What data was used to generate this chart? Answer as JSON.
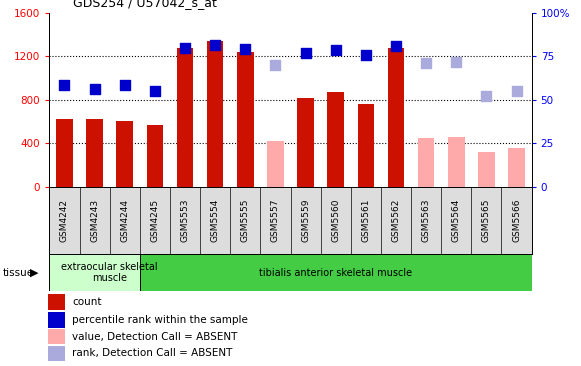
{
  "title": "GDS254 / U57042_s_at",
  "categories": [
    "GSM4242",
    "GSM4243",
    "GSM4244",
    "GSM4245",
    "GSM5553",
    "GSM5554",
    "GSM5555",
    "GSM5557",
    "GSM5559",
    "GSM5560",
    "GSM5561",
    "GSM5562",
    "GSM5563",
    "GSM5564",
    "GSM5565",
    "GSM5566"
  ],
  "count_values": [
    620,
    620,
    600,
    570,
    1280,
    1340,
    1240,
    null,
    820,
    870,
    760,
    1280,
    null,
    null,
    null,
    null
  ],
  "count_absent_values": [
    null,
    null,
    null,
    null,
    null,
    null,
    null,
    420,
    null,
    null,
    null,
    null,
    450,
    460,
    320,
    360
  ],
  "rank_values": [
    940,
    900,
    940,
    880,
    1280,
    1300,
    1270,
    null,
    1230,
    1255,
    1210,
    1290,
    null,
    null,
    null,
    null
  ],
  "rank_absent_values": [
    null,
    null,
    null,
    null,
    null,
    null,
    null,
    1120,
    null,
    null,
    null,
    null,
    1135,
    1145,
    830,
    880
  ],
  "ylim_left": [
    0,
    1600
  ],
  "ylim_right": [
    0,
    100
  ],
  "yticks_left": [
    0,
    400,
    800,
    1200,
    1600
  ],
  "yticks_right": [
    0,
    25,
    50,
    75,
    100
  ],
  "ytick_labels_right": [
    "0",
    "25",
    "50",
    "75",
    "100%"
  ],
  "tissue_groups": [
    {
      "label": "extraocular skeletal\nmuscle",
      "start": 0,
      "end": 3,
      "color": "#ccffcc"
    },
    {
      "label": "tibialis anterior skeletal muscle",
      "start": 3,
      "end": 15,
      "color": "#44cc44"
    }
  ],
  "colors": {
    "count_bar": "#cc1100",
    "count_absent_bar": "#ffaaaa",
    "rank_dot": "#0000cc",
    "rank_absent_dot": "#aaaadd"
  },
  "bar_width": 0.55,
  "legend": [
    {
      "label": "count",
      "color": "#cc1100"
    },
    {
      "label": "percentile rank within the sample",
      "color": "#0000cc"
    },
    {
      "label": "value, Detection Call = ABSENT",
      "color": "#ffaaaa"
    },
    {
      "label": "rank, Detection Call = ABSENT",
      "color": "#aaaadd"
    }
  ]
}
